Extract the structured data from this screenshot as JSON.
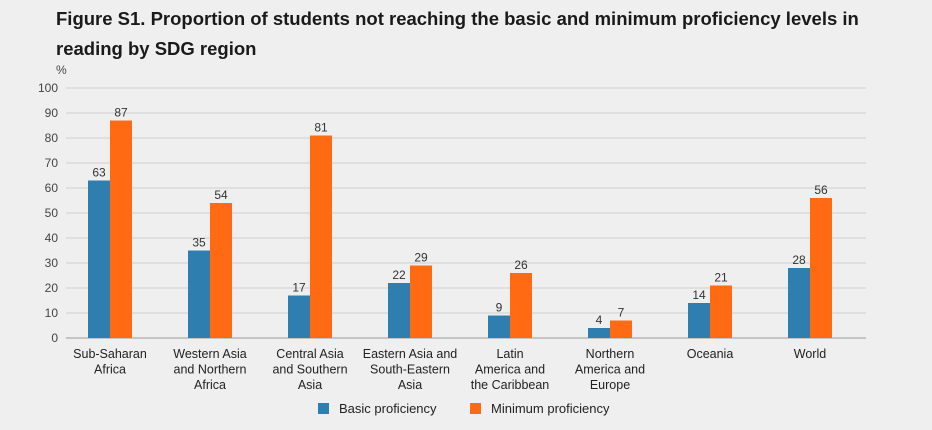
{
  "chart_data": {
    "type": "bar",
    "title": "Figure S1. Proportion of students not reaching the basic and minimum proficiency levels in reading by SDG region",
    "ylabel": "%",
    "xlabel": "",
    "ylim": [
      0,
      100
    ],
    "yticks": [
      0,
      10,
      20,
      30,
      40,
      50,
      60,
      70,
      80,
      90,
      100
    ],
    "grid": true,
    "legend_position": "bottom",
    "categories": [
      [
        "Sub-Saharan",
        "Africa"
      ],
      [
        "Western Asia",
        "and Northern",
        "Africa"
      ],
      [
        "Central Asia",
        "and Southern",
        "Asia"
      ],
      [
        "Eastern Asia and",
        "South-Eastern",
        "Asia"
      ],
      [
        "Latin",
        "America and",
        "the Caribbean"
      ],
      [
        "Northern",
        "America and",
        "Europe"
      ],
      [
        "Oceania"
      ],
      [
        "World"
      ]
    ],
    "series": [
      {
        "name": "Basic proficiency",
        "color": "#2e7fb0",
        "values": [
          63,
          35,
          17,
          22,
          9,
          4,
          14,
          28
        ]
      },
      {
        "name": "Minimum proficiency",
        "color": "#ff6a13",
        "values": [
          87,
          54,
          81,
          29,
          26,
          7,
          21,
          56
        ]
      }
    ]
  }
}
